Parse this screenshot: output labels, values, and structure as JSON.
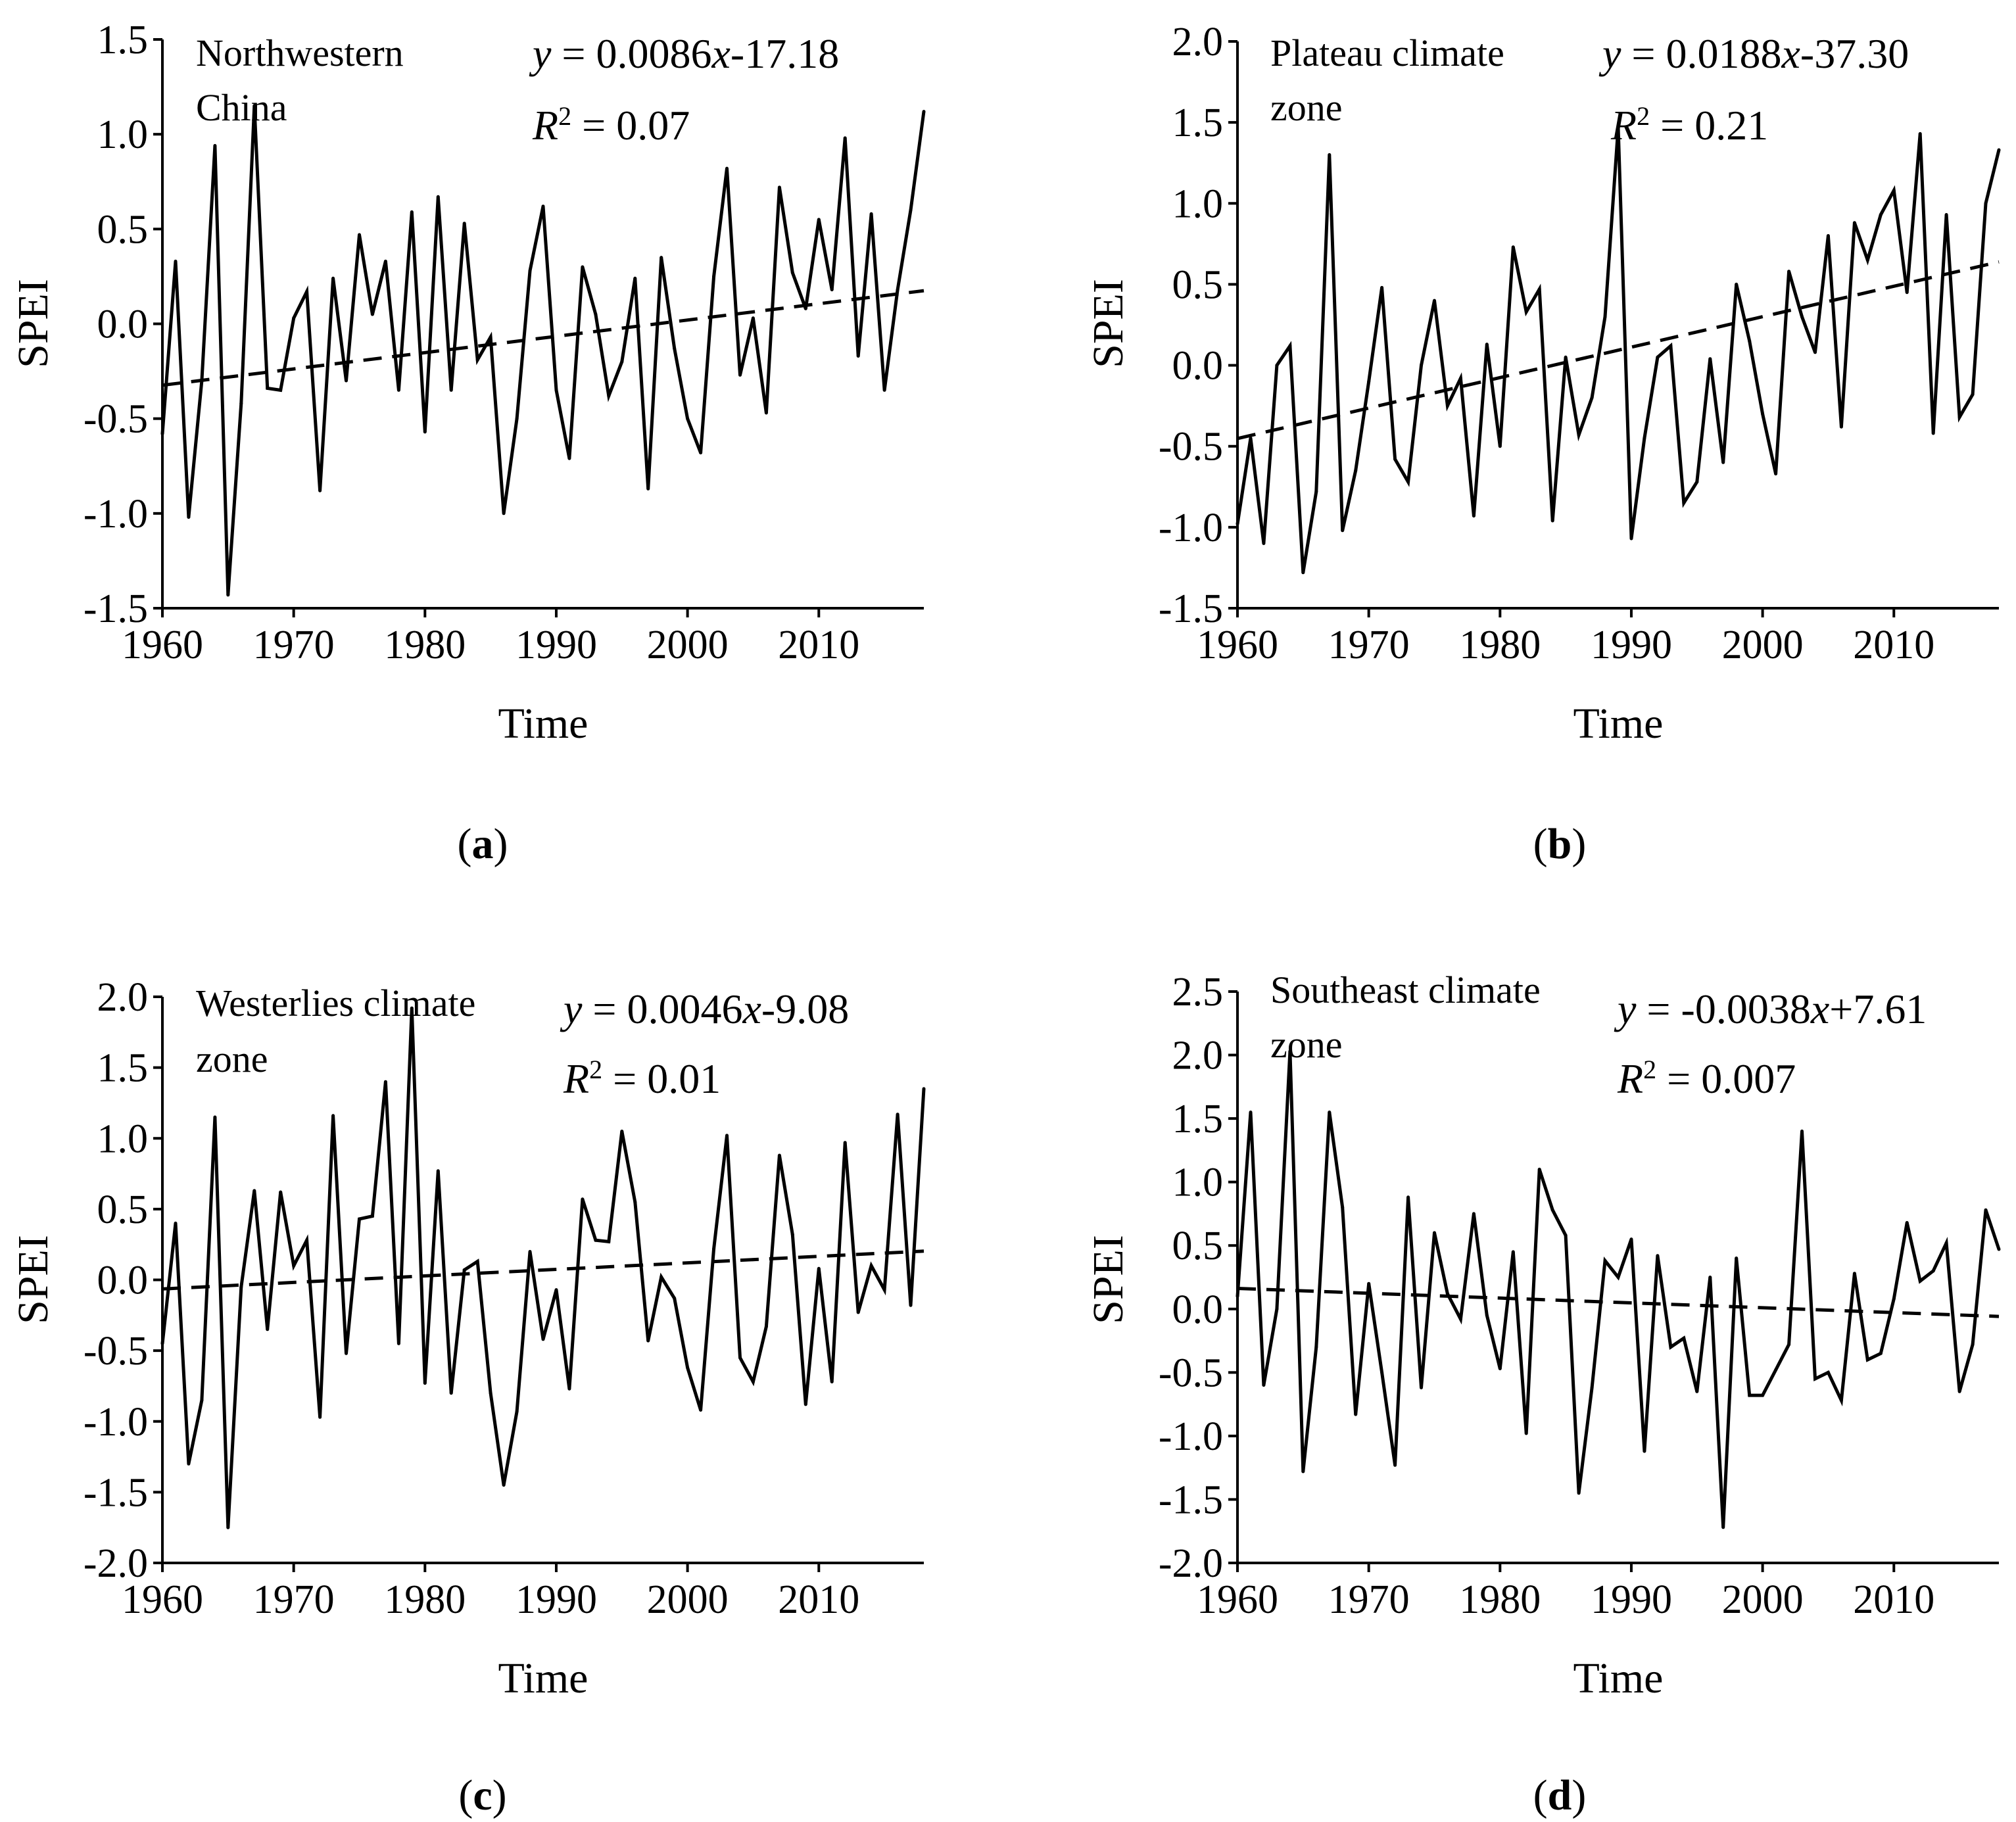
{
  "figure": {
    "x_axis_title": "Time",
    "y_axis_title": "SPEI"
  },
  "chart_data": [
    {
      "type": "line",
      "panel": "(a)",
      "panel_letter": "a",
      "region_lines": [
        "Northwestern",
        "China"
      ],
      "equation": {
        "y": "y",
        "mid": " = 0.0086",
        "x": "x",
        "tail": "-17.18"
      },
      "r2": {
        "r": "R",
        "sup": "2",
        "tail": " = 0.07"
      },
      "xlabel": "Time",
      "ylabel": "SPEI",
      "xlim": [
        1960,
        2018
      ],
      "ylim": [
        -1.5,
        1.5
      ],
      "xticks": [
        1960,
        1970,
        1980,
        1990,
        2000,
        2010
      ],
      "xtick_labels": [
        "1960",
        "1970",
        "1980",
        "1990",
        "2000",
        "2010"
      ],
      "yticks": [
        -1.5,
        -1.0,
        -0.5,
        0.0,
        0.5,
        1.0,
        1.5
      ],
      "ytick_labels": [
        "-1.5",
        "-1.0",
        "-0.5",
        "0.0",
        "0.5",
        "1.0",
        "1.5"
      ],
      "x_start": 1960,
      "values": [
        -0.58,
        0.33,
        -1.02,
        -0.3,
        0.94,
        -1.43,
        -0.42,
        1.15,
        -0.34,
        -0.35,
        0.03,
        0.17,
        -0.88,
        0.24,
        -0.3,
        0.47,
        0.05,
        0.33,
        -0.35,
        0.59,
        -0.57,
        0.67,
        -0.35,
        0.53,
        -0.19,
        -0.07,
        -1.0,
        -0.5,
        0.28,
        0.62,
        -0.35,
        -0.71,
        0.3,
        0.05,
        -0.38,
        -0.2,
        0.24,
        -0.87,
        0.35,
        -0.13,
        -0.5,
        -0.68,
        0.25,
        0.82,
        -0.27,
        0.03,
        -0.47,
        0.72,
        0.27,
        0.08,
        0.55,
        0.18,
        0.98,
        -0.17,
        0.58,
        -0.35,
        0.18,
        0.6,
        1.12
      ],
      "trend": {
        "slope": 0.0086,
        "intercept": -17.18
      }
    },
    {
      "type": "line",
      "panel": "(b)",
      "panel_letter": "b",
      "region_lines": [
        "Plateau climate",
        "zone"
      ],
      "equation": {
        "y": "y",
        "mid": " = 0.0188",
        "x": "x",
        "tail": "-37.30"
      },
      "r2": {
        "r": "R",
        "sup": "2",
        "tail": " = 0.21"
      },
      "xlabel": "Time",
      "ylabel": "SPEI",
      "xlim": [
        1960,
        2018
      ],
      "ylim": [
        -1.5,
        2.0
      ],
      "xticks": [
        1960,
        1970,
        1980,
        1990,
        2000,
        2010
      ],
      "xtick_labels": [
        "1960",
        "1970",
        "1980",
        "1990",
        "2000",
        "2010"
      ],
      "yticks": [
        -1.5,
        -1.0,
        -0.5,
        0.0,
        0.5,
        1.0,
        1.5,
        2.0
      ],
      "ytick_labels": [
        "-1.5",
        "-1.0",
        "-0.5",
        "0.0",
        "0.5",
        "1.0",
        "1.5",
        "2.0"
      ],
      "x_start": 1960,
      "values": [
        -0.98,
        -0.45,
        -1.1,
        0.0,
        0.12,
        -1.28,
        -0.78,
        1.3,
        -1.02,
        -0.65,
        -0.1,
        0.48,
        -0.58,
        -0.72,
        0.0,
        0.4,
        -0.25,
        -0.08,
        -0.93,
        0.13,
        -0.5,
        0.73,
        0.33,
        0.47,
        -0.96,
        0.05,
        -0.43,
        -0.2,
        0.3,
        1.47,
        -1.07,
        -0.45,
        0.05,
        0.12,
        -0.85,
        -0.72,
        0.04,
        -0.6,
        0.5,
        0.15,
        -0.3,
        -0.67,
        0.58,
        0.3,
        0.08,
        0.8,
        -0.38,
        0.88,
        0.65,
        0.93,
        1.08,
        0.45,
        1.43,
        -0.42,
        0.93,
        -0.32,
        -0.18,
        1.0,
        1.33
      ],
      "trend": {
        "slope": 0.0188,
        "intercept": -37.3
      }
    },
    {
      "type": "line",
      "panel": "(c)",
      "panel_letter": "c",
      "region_lines": [
        "Westerlies climate",
        "zone"
      ],
      "equation": {
        "y": "y",
        "mid": " = 0.0046",
        "x": "x",
        "tail": "-9.08"
      },
      "r2": {
        "r": "R",
        "sup": "2",
        "tail": " = 0.01"
      },
      "xlabel": "Time",
      "ylabel": "SPEI",
      "xlim": [
        1960,
        2018
      ],
      "ylim": [
        -2.0,
        2.0
      ],
      "xticks": [
        1960,
        1970,
        1980,
        1990,
        2000,
        2010
      ],
      "xtick_labels": [
        "1960",
        "1970",
        "1980",
        "1990",
        "2000",
        "2010"
      ],
      "yticks": [
        -2.0,
        -1.5,
        -1.0,
        -0.5,
        0.0,
        0.5,
        1.0,
        1.5,
        2.0
      ],
      "ytick_labels": [
        "-2.0",
        "-1.5",
        "-1.0",
        "-0.5",
        "0.0",
        "0.5",
        "1.0",
        "1.5",
        "2.0"
      ],
      "x_start": 1960,
      "values": [
        -0.45,
        0.4,
        -1.3,
        -0.85,
        1.15,
        -1.75,
        -0.05,
        0.63,
        -0.35,
        0.62,
        0.1,
        0.28,
        -0.97,
        1.16,
        -0.52,
        0.43,
        0.45,
        1.4,
        -0.45,
        1.92,
        -0.73,
        0.77,
        -0.8,
        0.07,
        0.13,
        -0.8,
        -1.45,
        -0.93,
        0.2,
        -0.42,
        -0.07,
        -0.77,
        0.57,
        0.28,
        0.27,
        1.05,
        0.55,
        -0.43,
        0.02,
        -0.13,
        -0.62,
        -0.92,
        0.22,
        1.02,
        -0.55,
        -0.72,
        -0.33,
        0.88,
        0.32,
        -0.88,
        0.08,
        -0.72,
        0.97,
        -0.23,
        0.1,
        -0.07,
        1.17,
        -0.18,
        1.35
      ],
      "trend": {
        "slope": 0.0046,
        "intercept": -9.08
      }
    },
    {
      "type": "line",
      "panel": "(d)",
      "panel_letter": "d",
      "region_lines": [
        "Southeast climate",
        "zone"
      ],
      "equation": {
        "y": "y",
        "mid": " = -0.0038",
        "x": "x",
        "tail": "+7.61"
      },
      "r2": {
        "r": "R",
        "sup": "2",
        "tail": " = 0.007"
      },
      "xlabel": "Time",
      "ylabel": "SPEI",
      "xlim": [
        1960,
        2018
      ],
      "ylim": [
        -2.0,
        2.5
      ],
      "xticks": [
        1960,
        1970,
        1980,
        1990,
        2000,
        2010
      ],
      "xtick_labels": [
        "1960",
        "1970",
        "1980",
        "1990",
        "2000",
        "2010"
      ],
      "yticks": [
        -2.0,
        -1.5,
        -1.0,
        -0.5,
        0.0,
        0.5,
        1.0,
        1.5,
        2.0,
        2.5
      ],
      "ytick_labels": [
        "-2.0",
        "-1.5",
        "-1.0",
        "-0.5",
        "0.0",
        "0.5",
        "1.0",
        "1.5",
        "2.0",
        "2.5"
      ],
      "x_start": 1960,
      "values": [
        0.1,
        1.55,
        -0.6,
        0.0,
        2.03,
        -1.28,
        -0.3,
        1.55,
        0.8,
        -0.83,
        0.2,
        -0.5,
        -1.23,
        0.88,
        -0.62,
        0.6,
        0.12,
        -0.08,
        0.75,
        -0.05,
        -0.47,
        0.45,
        -0.98,
        1.1,
        0.78,
        0.58,
        -1.45,
        -0.62,
        0.38,
        0.25,
        0.55,
        -1.12,
        0.42,
        -0.3,
        -0.23,
        -0.65,
        0.25,
        -1.72,
        0.4,
        -0.68,
        -0.68,
        -0.48,
        -0.28,
        1.4,
        -0.55,
        -0.5,
        -0.72,
        0.28,
        -0.4,
        -0.35,
        0.08,
        0.68,
        0.22,
        0.3,
        0.52,
        -0.65,
        -0.28,
        0.78,
        0.47
      ],
      "trend": {
        "slope": -0.0038,
        "intercept": 7.61
      }
    }
  ]
}
